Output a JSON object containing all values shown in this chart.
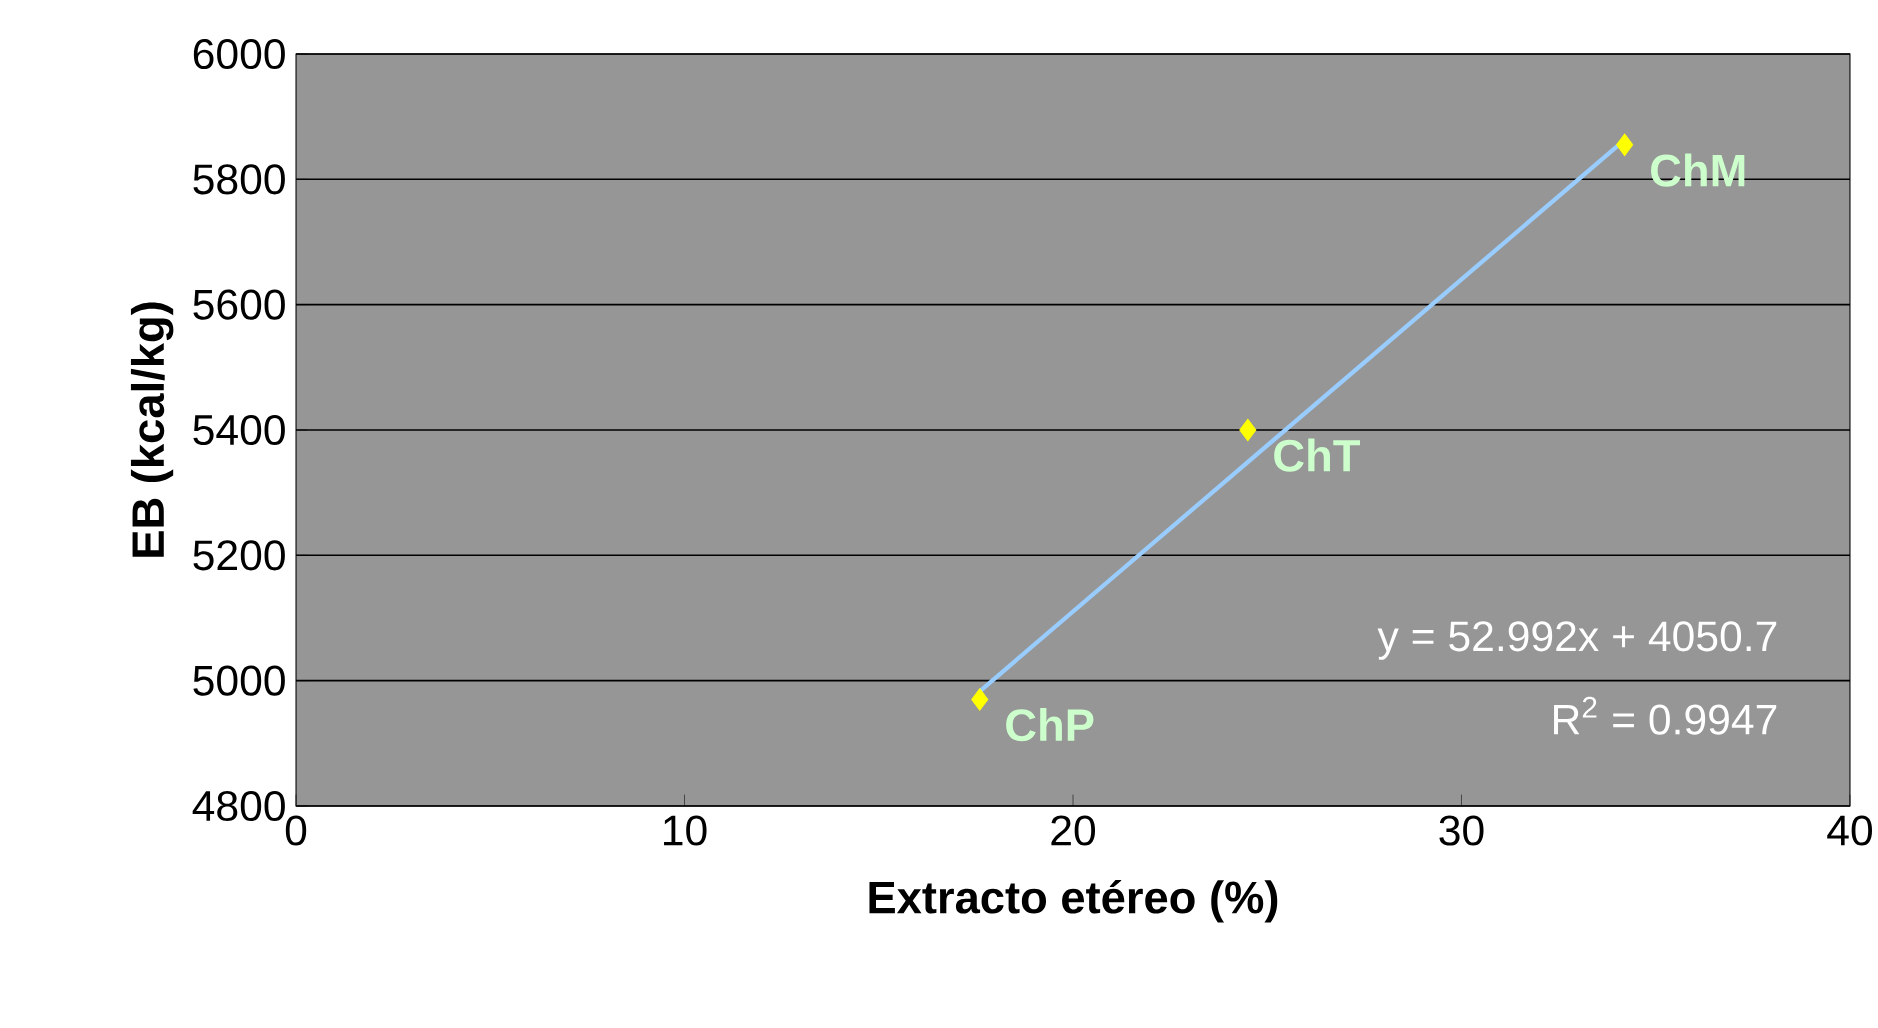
{
  "chart_data": {
    "type": "scatter",
    "xlabel": "Extracto etéreo (%)",
    "ylabel": "EB (kcal/kg)",
    "xlim": [
      0,
      40
    ],
    "xticks": [
      0,
      10,
      20,
      30,
      40
    ],
    "ylim": [
      4800,
      6000
    ],
    "yticks": [
      4800,
      5000,
      5200,
      5400,
      5600,
      5800,
      6000
    ],
    "grid": "y",
    "series": [
      {
        "color": "#ffff00",
        "marker": "diamond",
        "x": [
          17.6,
          24.5,
          34.2
        ],
        "values": [
          4970,
          5400,
          5855
        ]
      },
      {
        "type": "line",
        "color": "#99ccff",
        "marker": "none",
        "line_style": "solid",
        "x": [
          17.6,
          34.2
        ],
        "values": [
          4983,
          5863
        ]
      }
    ],
    "annotations": [
      {
        "text": "ChP",
        "x": 17.6,
        "y": 4970
      },
      {
        "text": "ChT",
        "x": 24.5,
        "y": 5400
      },
      {
        "text": "ChM",
        "x": 34.2,
        "y": 5855
      },
      "y = 52.992x + 4050.7",
      "R$^{2}$ = 0.9947"
    ]
  }
}
